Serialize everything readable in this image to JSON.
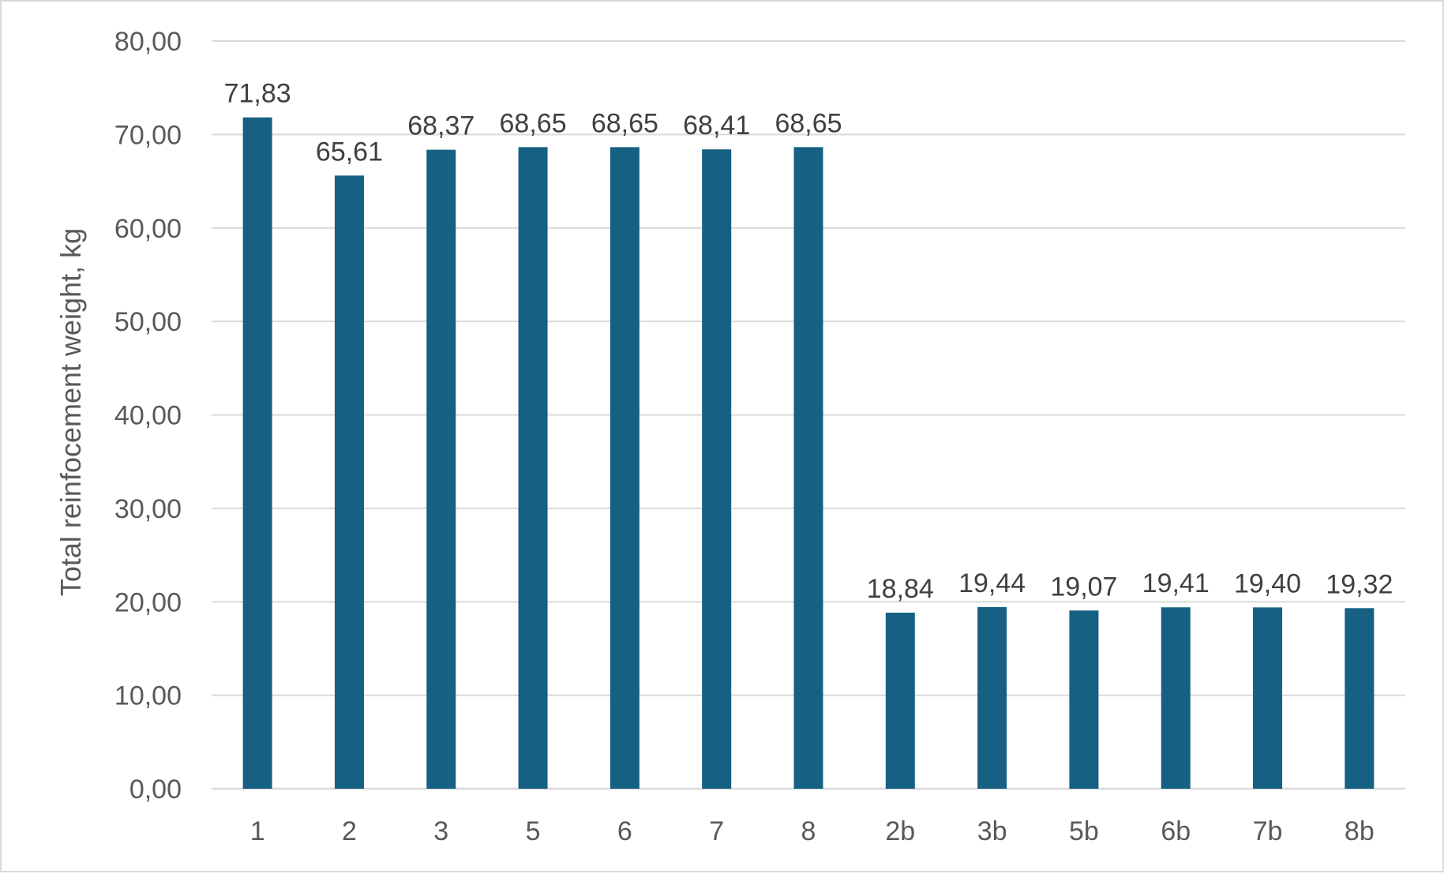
{
  "chart_data": {
    "type": "bar",
    "title": "",
    "xlabel": "",
    "ylabel": "Total reinfocement weight, kg",
    "categories": [
      "1",
      "2",
      "3",
      "5",
      "6",
      "7",
      "8",
      "2b",
      "3b",
      "5b",
      "6b",
      "7b",
      "8b"
    ],
    "values": [
      71.83,
      65.61,
      68.37,
      68.65,
      68.65,
      68.41,
      68.65,
      18.84,
      19.44,
      19.07,
      19.41,
      19.4,
      19.32
    ],
    "value_labels": [
      "71,83",
      "65,61",
      "68,37",
      "68,65",
      "68,65",
      "68,41",
      "68,65",
      "18,84",
      "19,44",
      "19,07",
      "19,41",
      "19,40",
      "19,32"
    ],
    "ylim": [
      0,
      80
    ],
    "yticks": [
      0,
      10,
      20,
      30,
      40,
      50,
      60,
      70,
      80
    ],
    "ytick_labels": [
      "0,00",
      "10,00",
      "20,00",
      "30,00",
      "40,00",
      "50,00",
      "60,00",
      "70,00",
      "80,00"
    ],
    "grid": true,
    "legend": "none",
    "colors": {
      "bar": "#166083",
      "grid": "#d9d9d9",
      "tick_text": "#595959",
      "label_text": "#404040"
    }
  }
}
